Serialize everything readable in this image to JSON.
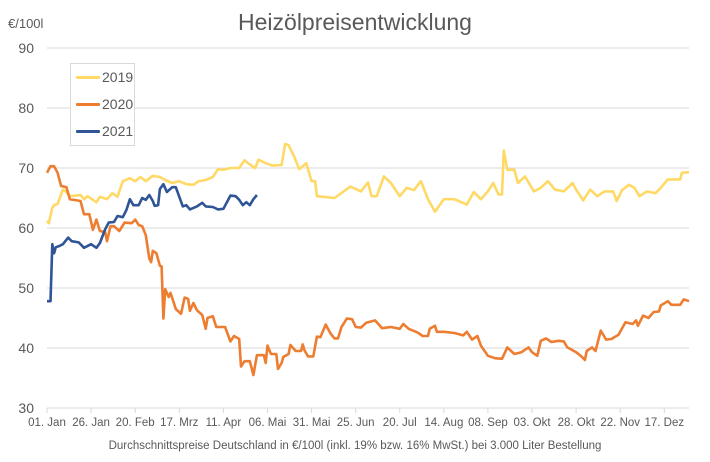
{
  "chart_data": {
    "type": "line",
    "title": "Heizölpreisentwicklung",
    "ylabel": "€/100l",
    "xlabel": "Durchschnittspreise Deutschland in €/100l (inkl. 19% bzw. 16%  MwSt.) bei 3.000 Liter Bestellung",
    "ylim": [
      30,
      90
    ],
    "yticks": [
      "30",
      "40",
      "50",
      "60",
      "70",
      "80",
      "90"
    ],
    "xticks": [
      "01. Jan",
      "26. Jan",
      "20. Feb",
      "17. Mrz",
      "11. Apr",
      "06. Mai",
      "31. Mai",
      "25. Jun",
      "20. Jul",
      "14. Aug",
      "08. Sep",
      "03. Okt",
      "28. Okt",
      "22. Nov",
      "17. Dez"
    ],
    "grid": true,
    "legend_placement": "top-left",
    "series": [
      {
        "name": "2019",
        "color": "#FFD966",
        "points": [
          [
            "01.01",
            61.2
          ],
          [
            "02.01",
            60.8
          ],
          [
            "04.01",
            63.4
          ],
          [
            "05.01",
            63.8
          ],
          [
            "07.01",
            64.0
          ],
          [
            "10.01",
            66.4
          ],
          [
            "12.01",
            66.0
          ],
          [
            "14.01",
            65.3
          ],
          [
            "20.01",
            65.5
          ],
          [
            "22.01",
            64.8
          ],
          [
            "24.01",
            65.3
          ],
          [
            "29.01",
            64.3
          ],
          [
            "31.01",
            65.2
          ],
          [
            "04.02",
            64.8
          ],
          [
            "07.02",
            65.8
          ],
          [
            "10.02",
            65.2
          ],
          [
            "13.02",
            67.8
          ],
          [
            "17.02",
            68.3
          ],
          [
            "20.02",
            67.8
          ],
          [
            "23.02",
            68.5
          ],
          [
            "26.02",
            67.8
          ],
          [
            "02.03",
            68.7
          ],
          [
            "06.03",
            68.5
          ],
          [
            "09.03",
            68.0
          ],
          [
            "13.03",
            67.5
          ],
          [
            "17.03",
            67.8
          ],
          [
            "21.03",
            67.3
          ],
          [
            "25.03",
            67.2
          ],
          [
            "28.03",
            67.8
          ],
          [
            "01.04",
            68.0
          ],
          [
            "05.04",
            68.5
          ],
          [
            "08.04",
            69.8
          ],
          [
            "11.04",
            69.7
          ],
          [
            "15.04",
            70.0
          ],
          [
            "20.04",
            70.0
          ],
          [
            "23.04",
            71.3
          ],
          [
            "25.04",
            70.8
          ],
          [
            "29.04",
            70.0
          ],
          [
            "01.05",
            71.4
          ],
          [
            "05.05",
            70.8
          ],
          [
            "09.05",
            70.4
          ],
          [
            "14.05",
            70.5
          ],
          [
            "16.05",
            74.0
          ],
          [
            "18.05",
            73.8
          ],
          [
            "21.05",
            72.0
          ],
          [
            "24.05",
            69.8
          ],
          [
            "28.05",
            70.8
          ],
          [
            "31.05",
            67.8
          ],
          [
            "02.06",
            67.8
          ],
          [
            "03.06",
            65.3
          ],
          [
            "13.06",
            65.0
          ],
          [
            "22.06",
            66.9
          ],
          [
            "28.06",
            66.1
          ],
          [
            "02.07",
            67.6
          ],
          [
            "04.07",
            65.3
          ],
          [
            "07.07",
            65.3
          ],
          [
            "11.07",
            68.6
          ],
          [
            "15.07",
            67.5
          ],
          [
            "20.07",
            65.3
          ],
          [
            "24.07",
            66.7
          ],
          [
            "28.07",
            66.3
          ],
          [
            "01.08",
            67.8
          ],
          [
            "05.08",
            64.8
          ],
          [
            "09.08",
            62.7
          ],
          [
            "14.08",
            64.8
          ],
          [
            "20.08",
            64.8
          ],
          [
            "27.08",
            63.9
          ],
          [
            "31.08",
            66.0
          ],
          [
            "04.09",
            64.8
          ],
          [
            "08.09",
            66.1
          ],
          [
            "11.09",
            67.5
          ],
          [
            "14.09",
            65.6
          ],
          [
            "16.09",
            65.6
          ],
          [
            "17.09",
            72.9
          ],
          [
            "19.09",
            69.7
          ],
          [
            "23.09",
            69.7
          ],
          [
            "25.09",
            67.5
          ],
          [
            "29.09",
            68.6
          ],
          [
            "04.10",
            66.1
          ],
          [
            "08.10",
            66.7
          ],
          [
            "12.10",
            67.8
          ],
          [
            "16.10",
            66.4
          ],
          [
            "21.10",
            66.1
          ],
          [
            "26.10",
            67.5
          ],
          [
            "28.10",
            66.4
          ],
          [
            "01.11",
            64.6
          ],
          [
            "05.11",
            66.4
          ],
          [
            "09.11",
            65.3
          ],
          [
            "13.11",
            66.1
          ],
          [
            "18.11",
            66.1
          ],
          [
            "20.11",
            64.5
          ],
          [
            "23.11",
            66.3
          ],
          [
            "27.11",
            67.2
          ],
          [
            "30.11",
            66.7
          ],
          [
            "03.12",
            65.3
          ],
          [
            "07.12",
            66.1
          ],
          [
            "12.12",
            65.8
          ],
          [
            "15.12",
            66.7
          ],
          [
            "19.12",
            68.1
          ],
          [
            "26.12",
            68.1
          ],
          [
            "27.12",
            69.2
          ],
          [
            "31.12",
            69.3
          ]
        ]
      },
      {
        "name": "2020",
        "color": "#ED7D31",
        "points": [
          [
            "01.01",
            69.2
          ],
          [
            "03.01",
            70.3
          ],
          [
            "05.01",
            70.3
          ],
          [
            "07.01",
            69.2
          ],
          [
            "09.01",
            67.0
          ],
          [
            "12.01",
            66.8
          ],
          [
            "14.01",
            64.8
          ],
          [
            "20.01",
            64.5
          ],
          [
            "22.01",
            62.3
          ],
          [
            "25.01",
            62.3
          ],
          [
            "27.01",
            59.7
          ],
          [
            "29.01",
            61.4
          ],
          [
            "31.01",
            59.5
          ],
          [
            "03.02",
            59.3
          ],
          [
            "04.02",
            57.8
          ],
          [
            "06.02",
            60.3
          ],
          [
            "08.02",
            60.3
          ],
          [
            "11.02",
            59.5
          ],
          [
            "14.02",
            60.9
          ],
          [
            "18.02",
            60.8
          ],
          [
            "20.02",
            61.4
          ],
          [
            "22.02",
            60.5
          ],
          [
            "24.02",
            60.3
          ],
          [
            "26.02",
            58.8
          ],
          [
            "28.02",
            54.9
          ],
          [
            "01.03",
            54.3
          ],
          [
            "02.03",
            56.2
          ],
          [
            "04.03",
            55.8
          ],
          [
            "06.03",
            53.7
          ],
          [
            "07.03",
            53.6
          ],
          [
            "08.03",
            44.9
          ],
          [
            "09.03",
            49.8
          ],
          [
            "11.03",
            48.5
          ],
          [
            "12.03",
            49.2
          ],
          [
            "15.03",
            46.5
          ],
          [
            "18.03",
            45.7
          ],
          [
            "20.03",
            48.4
          ],
          [
            "22.03",
            48.2
          ],
          [
            "23.03",
            46.2
          ],
          [
            "25.03",
            47.5
          ],
          [
            "27.03",
            46.3
          ],
          [
            "30.03",
            45.5
          ],
          [
            "01.04",
            43.2
          ],
          [
            "02.04",
            45.0
          ],
          [
            "05.04",
            45.3
          ],
          [
            "07.04",
            43.5
          ],
          [
            "12.04",
            43.5
          ],
          [
            "15.04",
            41.1
          ],
          [
            "17.04",
            42.0
          ],
          [
            "20.04",
            41.5
          ],
          [
            "21.04",
            36.9
          ],
          [
            "23.04",
            37.8
          ],
          [
            "26.04",
            37.8
          ],
          [
            "28.04",
            35.5
          ],
          [
            "30.04",
            38.8
          ],
          [
            "04.05",
            38.8
          ],
          [
            "05.05",
            37.5
          ],
          [
            "06.05",
            40.4
          ],
          [
            "08.05",
            39.0
          ],
          [
            "11.05",
            39.0
          ],
          [
            "12.05",
            36.5
          ],
          [
            "14.05",
            37.5
          ],
          [
            "15.05",
            38.5
          ],
          [
            "18.05",
            39.0
          ],
          [
            "19.05",
            40.5
          ],
          [
            "22.05",
            39.5
          ],
          [
            "25.05",
            39.5
          ],
          [
            "26.05",
            40.6
          ],
          [
            "27.05",
            39.6
          ],
          [
            "29.05",
            38.6
          ],
          [
            "01.06",
            38.6
          ],
          [
            "03.06",
            41.9
          ],
          [
            "05.06",
            41.8
          ],
          [
            "08.06",
            43.9
          ],
          [
            "11.06",
            42.3
          ],
          [
            "13.06",
            41.6
          ],
          [
            "15.06",
            41.6
          ],
          [
            "17.06",
            43.5
          ],
          [
            "20.06",
            44.9
          ],
          [
            "23.06",
            44.8
          ],
          [
            "25.06",
            43.5
          ],
          [
            "28.06",
            43.4
          ],
          [
            "01.07",
            44.2
          ],
          [
            "06.07",
            44.6
          ],
          [
            "10.07",
            43.3
          ],
          [
            "15.07",
            43.5
          ],
          [
            "20.07",
            43.2
          ],
          [
            "22.07",
            44.0
          ],
          [
            "25.07",
            43.2
          ],
          [
            "30.07",
            42.6
          ],
          [
            "02.08",
            42.0
          ],
          [
            "05.08",
            42.0
          ],
          [
            "06.08",
            43.2
          ],
          [
            "09.08",
            43.7
          ],
          [
            "10.08",
            42.7
          ],
          [
            "14.08",
            42.7
          ],
          [
            "20.08",
            42.5
          ],
          [
            "25.08",
            42.1
          ],
          [
            "27.08",
            42.7
          ],
          [
            "30.08",
            41.4
          ],
          [
            "02.09",
            42.0
          ],
          [
            "04.09",
            40.4
          ],
          [
            "08.09",
            38.7
          ],
          [
            "12.09",
            38.3
          ],
          [
            "16.09",
            38.2
          ],
          [
            "19.09",
            40.1
          ],
          [
            "23.09",
            39.0
          ],
          [
            "27.09",
            39.3
          ],
          [
            "01.10",
            40.1
          ],
          [
            "03.10",
            39.3
          ],
          [
            "06.10",
            38.7
          ],
          [
            "08.10",
            41.2
          ],
          [
            "11.10",
            41.6
          ],
          [
            "14.10",
            41.0
          ],
          [
            "18.10",
            41.2
          ],
          [
            "21.10",
            41.1
          ],
          [
            "23.10",
            40.1
          ],
          [
            "25.10",
            39.8
          ],
          [
            "28.10",
            39.3
          ],
          [
            "31.10",
            38.6
          ],
          [
            "02.11",
            38.0
          ],
          [
            "03.11",
            39.5
          ],
          [
            "06.11",
            40.1
          ],
          [
            "08.11",
            39.5
          ],
          [
            "11.11",
            42.9
          ],
          [
            "14.11",
            41.4
          ],
          [
            "17.11",
            41.5
          ],
          [
            "21.11",
            42.2
          ],
          [
            "25.11",
            44.3
          ],
          [
            "29.11",
            44.0
          ],
          [
            "01.12",
            44.6
          ],
          [
            "02.12",
            43.7
          ],
          [
            "05.12",
            45.4
          ],
          [
            "08.12",
            45.0
          ],
          [
            "11.12",
            46.0
          ],
          [
            "14.12",
            46.1
          ],
          [
            "15.12",
            47.1
          ],
          [
            "19.12",
            47.8
          ],
          [
            "21.12",
            47.2
          ],
          [
            "26.12",
            47.2
          ],
          [
            "28.12",
            48.1
          ],
          [
            "31.12",
            47.8
          ]
        ]
      },
      {
        "name": "2021",
        "color": "#2F5597",
        "points": [
          [
            "01.01",
            47.8
          ],
          [
            "03.01",
            47.8
          ],
          [
            "04.01",
            57.3
          ],
          [
            "05.01",
            55.8
          ],
          [
            "06.01",
            56.8
          ],
          [
            "08.01",
            57.0
          ],
          [
            "10.01",
            57.3
          ],
          [
            "13.01",
            58.4
          ],
          [
            "15.01",
            57.8
          ],
          [
            "19.01",
            57.6
          ],
          [
            "22.01",
            56.7
          ],
          [
            "26.01",
            57.3
          ],
          [
            "29.01",
            56.7
          ],
          [
            "31.01",
            57.5
          ],
          [
            "03.02",
            59.8
          ],
          [
            "05.02",
            60.9
          ],
          [
            "08.02",
            61.0
          ],
          [
            "10.02",
            62.0
          ],
          [
            "13.02",
            61.8
          ],
          [
            "15.02",
            63.0
          ],
          [
            "17.02",
            64.8
          ],
          [
            "19.02",
            63.8
          ],
          [
            "22.02",
            63.8
          ],
          [
            "24.02",
            65.0
          ],
          [
            "26.02",
            64.7
          ],
          [
            "28.02",
            65.5
          ],
          [
            "02.03",
            64.5
          ],
          [
            "03.03",
            63.7
          ],
          [
            "05.03",
            63.8
          ],
          [
            "06.03",
            66.5
          ],
          [
            "08.03",
            67.3
          ],
          [
            "10.03",
            66.0
          ],
          [
            "13.03",
            66.8
          ],
          [
            "15.03",
            66.8
          ],
          [
            "17.03",
            65.2
          ],
          [
            "19.03",
            63.6
          ],
          [
            "21.03",
            63.8
          ],
          [
            "23.03",
            63.1
          ],
          [
            "27.03",
            63.6
          ],
          [
            "30.03",
            64.2
          ],
          [
            "01.04",
            63.6
          ],
          [
            "05.04",
            63.5
          ],
          [
            "08.04",
            63.1
          ],
          [
            "11.04",
            63.2
          ],
          [
            "15.04",
            65.4
          ],
          [
            "18.04",
            65.3
          ],
          [
            "20.04",
            64.7
          ],
          [
            "22.04",
            63.8
          ],
          [
            "24.04",
            64.3
          ],
          [
            "26.04",
            63.8
          ],
          [
            "28.04",
            64.8
          ],
          [
            "30.04",
            65.5
          ]
        ]
      }
    ]
  }
}
